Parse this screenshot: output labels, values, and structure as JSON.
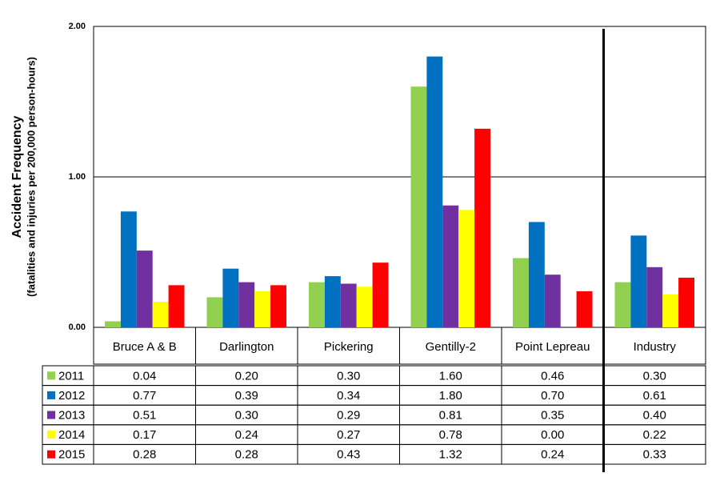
{
  "chart_data": {
    "type": "bar",
    "y_label": "Accident Frequency",
    "y_sublabel": "(fatalities  and injuries per 200,000 person-hours)",
    "categories": [
      "Bruce A & B",
      "Darlington",
      "Pickering",
      "Gentilly-2",
      "Point Lepreau",
      "Industry"
    ],
    "series": [
      {
        "name": "2011",
        "color": "#92d050",
        "values": [
          0.04,
          0.2,
          0.3,
          1.6,
          0.46,
          0.3
        ],
        "value_labels": [
          "0.04",
          "0.20",
          "0.30",
          "1.60",
          "0.46",
          "0.30"
        ]
      },
      {
        "name": "2012",
        "color": "#0070c0",
        "values": [
          0.77,
          0.39,
          0.34,
          1.8,
          0.7,
          0.61
        ],
        "value_labels": [
          "0.77",
          "0.39",
          "0.34",
          "1.80",
          "0.70",
          "0.61"
        ]
      },
      {
        "name": "2013",
        "color": "#7030a0",
        "values": [
          0.51,
          0.3,
          0.29,
          0.81,
          0.35,
          0.4
        ],
        "value_labels": [
          "0.51",
          "0.30",
          "0.29",
          "0.81",
          "0.35",
          "0.40"
        ]
      },
      {
        "name": "2014",
        "color": "#ffff00",
        "values": [
          0.17,
          0.24,
          0.27,
          0.78,
          0.0,
          0.22
        ],
        "value_labels": [
          "0.17",
          "0.24",
          "0.27",
          "0.78",
          "0.00",
          "0.22"
        ]
      },
      {
        "name": "2015",
        "color": "#ff0000",
        "values": [
          0.28,
          0.28,
          0.43,
          1.32,
          0.24,
          0.33
        ],
        "value_labels": [
          "0.28",
          "0.28",
          "0.43",
          "1.32",
          "0.24",
          "0.33"
        ]
      }
    ],
    "ylim": [
      0,
      2
    ],
    "yticks": [
      {
        "value": 0,
        "label": "0.00"
      },
      {
        "value": 1,
        "label": "1.00"
      },
      {
        "value": 2,
        "label": "2.00"
      }
    ],
    "grid": true
  }
}
